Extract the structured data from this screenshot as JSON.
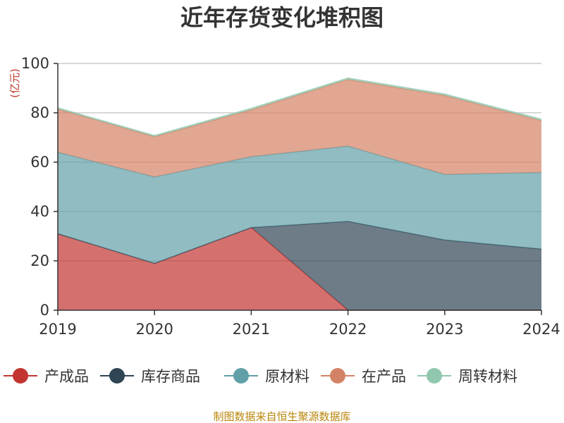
{
  "chart_data": {
    "type": "area",
    "stacked": true,
    "title": "近年存货变化堆积图",
    "unit_label": "(亿元)",
    "source": "制图数据来自恒生聚源数据库",
    "categories": [
      "2019",
      "2020",
      "2021",
      "2022",
      "2023",
      "2024"
    ],
    "ylim": [
      0,
      100
    ],
    "yticks": [
      0,
      20,
      40,
      60,
      80,
      100
    ],
    "grid": true,
    "legend_position": "bottom",
    "series": [
      {
        "name": "产成品",
        "color": "#c23531",
        "values": [
          31,
          19,
          33.5,
          0,
          0,
          0
        ]
      },
      {
        "name": "库存商品",
        "color": "#2f4554",
        "values": [
          0,
          0,
          0,
          36,
          28.5,
          24.8
        ]
      },
      {
        "name": "原材料",
        "color": "#61a0a8",
        "values": [
          33,
          35,
          28.7,
          30.5,
          26.5,
          31
        ]
      },
      {
        "name": "在产品",
        "color": "#d48265",
        "values": [
          17.5,
          16.3,
          19,
          27,
          32,
          21
        ]
      },
      {
        "name": "周转材料",
        "color": "#91c7ae",
        "values": [
          0.5,
          0.5,
          0.6,
          0.6,
          0.6,
          0.6
        ]
      }
    ]
  }
}
